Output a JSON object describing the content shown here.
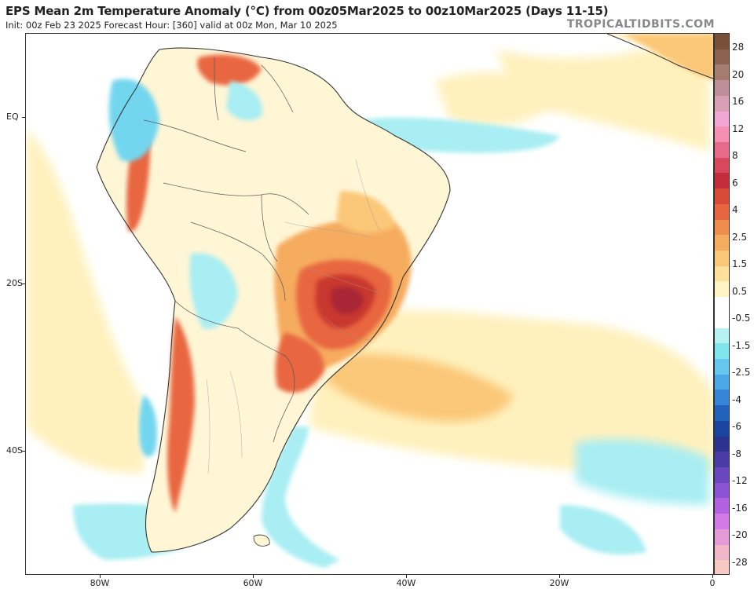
{
  "header": {
    "title": "EPS Mean 2m Temperature Anomaly (°C) from 00z05Mar2025 to 00z10Mar2025 (Days 11-15)",
    "subtitle": "Init: 00z Feb 23 2025   Forecast Hour: [360]   valid at 00z Mon, Mar 10 2025",
    "brand": "TROPICALTIDBITS.COM"
  },
  "axes": {
    "lat_labels": [
      "EQ",
      "20S",
      "40S"
    ],
    "lon_labels": [
      "80W",
      "60W",
      "40W",
      "20W",
      "0"
    ]
  },
  "colorbar": {
    "labels": [
      "28",
      "20",
      "16",
      "12",
      "8",
      "6",
      "4",
      "2.5",
      "1.5",
      "0.5",
      "-0.5",
      "-1.5",
      "-2.5",
      "-4",
      "-6",
      "-8",
      "-12",
      "-16",
      "-20",
      "-28"
    ],
    "colors": [
      "#7a4f3a",
      "#8e6250",
      "#a57d6e",
      "#bf8f99",
      "#d7a0b4",
      "#f2a6d5",
      "#f78fb5",
      "#e86a8a",
      "#d9475d",
      "#c42e3c",
      "#d84a36",
      "#e8663f",
      "#f18d4c",
      "#f6ac5e",
      "#fbc778",
      "#fde09a",
      "#fff4c4",
      "#ffffff",
      "#ffffff",
      "#b6f2f2",
      "#7fe6ee",
      "#67c8ef",
      "#4aa8e6",
      "#3586d8",
      "#2262bd",
      "#1a449e",
      "#2c3290",
      "#4b3ba6",
      "#6a47c0",
      "#8b54d4",
      "#b262e0",
      "#d47ae8",
      "#e59ad8",
      "#efb6c8",
      "#f6c9c2"
    ]
  },
  "map_colors": {
    "ocean_warm_light": "#fff1bd",
    "ocean_warm": "#fdd58f",
    "ocean_warmer": "#f8b871",
    "land_neutral": "#fff6d6",
    "hot": "#e8663f",
    "hotter": "#c9392f",
    "hottest": "#a82735",
    "cool_light": "#a8eef3",
    "cool": "#72d6ef",
    "cool_mid": "#4aa8e6",
    "border": "#333333"
  }
}
